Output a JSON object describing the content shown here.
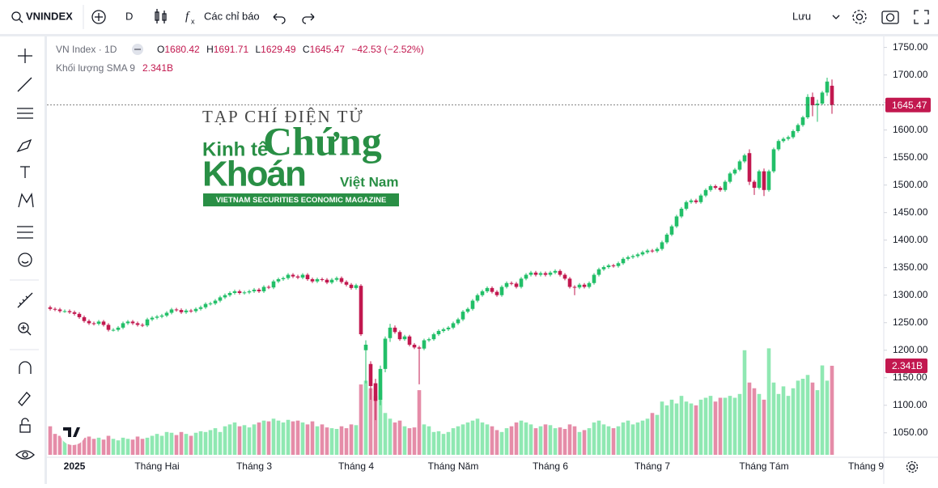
{
  "toolbar": {
    "symbol": "VNINDEX",
    "interval": "D",
    "indicators": "Các chỉ báo",
    "save": "Lưu"
  },
  "watermark": {
    "line1": "TẠP CHÍ ĐIỆN TỬ",
    "kinh_te": "Kinh tế",
    "chung": "Chứng",
    "khoan": "Khoán",
    "viet_nam": "Việt Nam",
    "band": "VIETNAM SECURITIES ECONOMIC MAGAZINE"
  },
  "chart_data": {
    "type": "candlestick",
    "legend": {
      "name": "VN Index · 1D",
      "o": "O",
      "h": "H",
      "l": "L",
      "c": "C",
      "change": "−42.53 (−2.52%)",
      "volume_name": "Khối lượng SMA 9"
    },
    "colors": {
      "up": "#22bf68",
      "down": "#c2184f",
      "volume_up": "#8fe8b2",
      "volume_down": "#e58ca8"
    },
    "categories": [
      null,
      null,
      null,
      null,
      null,
      "2025",
      null,
      null,
      null,
      null,
      null,
      null,
      null,
      null,
      null,
      null,
      null,
      null,
      null,
      null,
      null,
      null,
      "Tháng Hai",
      null,
      null,
      null,
      null,
      null,
      null,
      null,
      null,
      null,
      null,
      null,
      null,
      null,
      null,
      null,
      null,
      null,
      null,
      null,
      "Tháng 3",
      null,
      null,
      null,
      null,
      null,
      null,
      null,
      null,
      null,
      null,
      null,
      null,
      null,
      null,
      null,
      null,
      null,
      null,
      null,
      null,
      "Tháng 4",
      null,
      null,
      null,
      null,
      null,
      null,
      null,
      null,
      null,
      null,
      null,
      null,
      null,
      null,
      null,
      null,
      null,
      null,
      null,
      "Tháng Năm",
      null,
      null,
      null,
      null,
      null,
      null,
      null,
      null,
      null,
      null,
      null,
      null,
      null,
      null,
      null,
      null,
      null,
      null,
      null,
      "Tháng 6",
      null,
      null,
      null,
      null,
      null,
      null,
      null,
      null,
      null,
      null,
      null,
      null,
      null,
      null,
      null,
      null,
      null,
      null,
      null,
      null,
      "Tháng 7",
      null,
      null,
      null,
      null,
      null,
      null,
      null,
      null,
      null,
      null,
      null,
      null,
      null,
      null,
      null,
      null,
      null,
      null,
      null,
      null,
      null,
      null,
      "Tháng Tám",
      null,
      null,
      null,
      null,
      null,
      null,
      null,
      null,
      null,
      null,
      null,
      null,
      null,
      null,
      null,
      null,
      null,
      null,
      null,
      null,
      "Tháng 9"
    ],
    "open": [
      1278,
      1275,
      1274,
      1271,
      1271,
      1269,
      1266,
      1260,
      1253,
      1249,
      1248,
      1252,
      1246,
      1237,
      1237,
      1241,
      1249,
      1252,
      1249,
      1246,
      1245,
      1256,
      1259,
      1261,
      1263,
      1268,
      1274,
      1273,
      1269,
      1272,
      1271,
      1275,
      1278,
      1284,
      1285,
      1290,
      1296,
      1300,
      1304,
      1307,
      1304,
      1305,
      1307,
      1310,
      1307,
      1315,
      1314,
      1325,
      1329,
      1331,
      1337,
      1334,
      1332,
      1337,
      1329,
      1325,
      1329,
      1328,
      1323,
      1328,
      1331,
      1324,
      1319,
      1313,
      1317,
      1200,
      1175,
      1140,
      1110,
      1166,
      1222,
      1241,
      1233,
      1220,
      1225,
      1210,
      1205,
      1203,
      1218,
      1220,
      1229,
      1235,
      1238,
      1241,
      1249,
      1256,
      1270,
      1275,
      1290,
      1300,
      1307,
      1313,
      1306,
      1300,
      1315,
      1322,
      1321,
      1315,
      1330,
      1337,
      1341,
      1337,
      1340,
      1337,
      1341,
      1344,
      1337,
      1330,
      1315,
      1314,
      1319,
      1315,
      1322,
      1337,
      1347,
      1351,
      1354,
      1353,
      1358,
      1366,
      1369,
      1371,
      1374,
      1378,
      1381,
      1380,
      1384,
      1396,
      1410,
      1425,
      1443,
      1457,
      1469,
      1472,
      1469,
      1481,
      1491,
      1498,
      1495,
      1491,
      1506,
      1521,
      1528,
      1543,
      1558,
      1506,
      1495,
      1525,
      1491,
      1525,
      1565,
      1580,
      1584,
      1587,
      1598,
      1609,
      1623,
      1660,
      1645,
      1648,
      1668,
      1680.42,
      null,
      null,
      null,
      null,
      null,
      null,
      null
    ],
    "high": [
      1281,
      1278,
      1277,
      1274,
      1274,
      1272,
      1269,
      1263,
      1256,
      1252,
      1255,
      1255,
      1249,
      1240,
      1244,
      1252,
      1255,
      1255,
      1252,
      1249,
      1259,
      1262,
      1264,
      1266,
      1271,
      1277,
      1277,
      1276,
      1275,
      1275,
      1278,
      1281,
      1287,
      1288,
      1293,
      1299,
      1303,
      1307,
      1310,
      1310,
      1308,
      1310,
      1313,
      1313,
      1318,
      1318,
      1328,
      1332,
      1334,
      1340,
      1340,
      1337,
      1340,
      1340,
      1332,
      1332,
      1332,
      1331,
      1331,
      1334,
      1334,
      1327,
      1322,
      1321,
      1320,
      1218,
      1180,
      1148,
      1172,
      1225,
      1248,
      1245,
      1236,
      1228,
      1228,
      1213,
      1208,
      1221,
      1223,
      1232,
      1238,
      1241,
      1244,
      1252,
      1259,
      1273,
      1278,
      1293,
      1303,
      1310,
      1316,
      1316,
      1309,
      1318,
      1325,
      1325,
      1324,
      1333,
      1340,
      1344,
      1344,
      1343,
      1343,
      1344,
      1347,
      1347,
      1340,
      1333,
      1318,
      1322,
      1322,
      1325,
      1340,
      1350,
      1354,
      1357,
      1357,
      1361,
      1369,
      1372,
      1374,
      1377,
      1381,
      1384,
      1384,
      1387,
      1399,
      1413,
      1428,
      1446,
      1460,
      1472,
      1475,
      1475,
      1484,
      1494,
      1501,
      1501,
      1498,
      1509,
      1524,
      1531,
      1546,
      1557,
      1565,
      1509,
      1528,
      1530,
      1528,
      1568,
      1583,
      1587,
      1590,
      1601,
      1612,
      1626,
      1665,
      1668,
      1655,
      1671,
      1695,
      1691.71,
      null,
      null,
      null,
      null,
      null,
      null,
      null
    ],
    "low": [
      1272,
      1271,
      1268,
      1268,
      1266,
      1263,
      1257,
      1250,
      1246,
      1245,
      1245,
      1243,
      1234,
      1234,
      1234,
      1238,
      1246,
      1246,
      1243,
      1242,
      1242,
      1253,
      1256,
      1258,
      1260,
      1265,
      1270,
      1266,
      1266,
      1268,
      1268,
      1272,
      1275,
      1281,
      1282,
      1287,
      1293,
      1297,
      1301,
      1301,
      1301,
      1302,
      1304,
      1304,
      1304,
      1311,
      1311,
      1322,
      1326,
      1328,
      1331,
      1329,
      1329,
      1326,
      1322,
      1322,
      1325,
      1320,
      1320,
      1325,
      1321,
      1316,
      1310,
      1310,
      1226,
      1140,
      1110,
      1073,
      1100,
      1160,
      1215,
      1230,
      1217,
      1217,
      1207,
      1202,
      1138,
      1200,
      1215,
      1217,
      1226,
      1232,
      1235,
      1238,
      1246,
      1253,
      1267,
      1272,
      1287,
      1297,
      1304,
      1303,
      1297,
      1297,
      1312,
      1318,
      1312,
      1312,
      1327,
      1334,
      1334,
      1334,
      1334,
      1334,
      1338,
      1334,
      1327,
      1312,
      1300,
      1311,
      1312,
      1312,
      1319,
      1334,
      1344,
      1348,
      1350,
      1350,
      1355,
      1363,
      1366,
      1368,
      1371,
      1375,
      1377,
      1377,
      1381,
      1393,
      1407,
      1422,
      1440,
      1454,
      1466,
      1466,
      1466,
      1478,
      1488,
      1492,
      1488,
      1488,
      1503,
      1518,
      1525,
      1540,
      1500,
      1482,
      1492,
      1480,
      1488,
      1522,
      1562,
      1577,
      1581,
      1584,
      1595,
      1606,
      1620,
      1625,
      1615,
      1645,
      1662,
      1629.49,
      null,
      null,
      null,
      null,
      null,
      null,
      null
    ],
    "close": [
      1275,
      1274,
      1271,
      1271,
      1269,
      1266,
      1260,
      1253,
      1249,
      1248,
      1252,
      1246,
      1237,
      1237,
      1241,
      1249,
      1252,
      1249,
      1246,
      1245,
      1256,
      1259,
      1261,
      1263,
      1268,
      1274,
      1273,
      1269,
      1272,
      1271,
      1275,
      1278,
      1284,
      1285,
      1290,
      1296,
      1300,
      1304,
      1307,
      1304,
      1305,
      1307,
      1310,
      1307,
      1315,
      1314,
      1325,
      1329,
      1331,
      1337,
      1334,
      1332,
      1337,
      1329,
      1325,
      1329,
      1328,
      1323,
      1328,
      1331,
      1324,
      1319,
      1313,
      1318,
      1229,
      1210,
      1135,
      1108,
      1166,
      1221,
      1241,
      1233,
      1220,
      1225,
      1210,
      1205,
      1203,
      1218,
      1220,
      1229,
      1235,
      1238,
      1241,
      1249,
      1256,
      1270,
      1275,
      1290,
      1300,
      1307,
      1313,
      1306,
      1300,
      1315,
      1322,
      1321,
      1315,
      1330,
      1337,
      1341,
      1337,
      1340,
      1337,
      1341,
      1344,
      1337,
      1330,
      1315,
      1314,
      1319,
      1315,
      1322,
      1337,
      1347,
      1351,
      1354,
      1353,
      1358,
      1366,
      1369,
      1371,
      1374,
      1378,
      1381,
      1380,
      1384,
      1396,
      1410,
      1425,
      1443,
      1457,
      1469,
      1472,
      1469,
      1481,
      1491,
      1498,
      1495,
      1491,
      1506,
      1521,
      1528,
      1543,
      1554,
      1506,
      1495,
      1525,
      1491,
      1525,
      1565,
      1580,
      1584,
      1587,
      1598,
      1609,
      1623,
      1660,
      1645,
      1648,
      1668,
      1688,
      1645.47,
      null,
      null,
      null,
      null,
      null,
      null,
      null
    ],
    "volume": {
      "last_label": "2.341B",
      "values": [
        0.75,
        0.55,
        0.5,
        0.45,
        0.6,
        0.4,
        0.5,
        0.45,
        0.48,
        0.42,
        0.45,
        0.4,
        0.5,
        0.42,
        0.38,
        0.45,
        0.42,
        0.4,
        0.48,
        0.42,
        0.45,
        0.5,
        0.55,
        0.5,
        0.6,
        0.58,
        0.52,
        0.6,
        0.55,
        0.5,
        0.58,
        0.62,
        0.6,
        0.65,
        0.7,
        0.6,
        0.75,
        0.8,
        0.85,
        0.75,
        0.78,
        0.72,
        0.8,
        0.85,
        0.9,
        0.88,
        0.95,
        0.9,
        0.85,
        0.92,
        0.88,
        0.9,
        0.85,
        0.8,
        0.88,
        0.75,
        0.8,
        0.72,
        0.7,
        0.68,
        0.75,
        0.7,
        0.8,
        0.78,
        1.85,
        1.95,
        1.75,
        1.55,
        1.7,
        1.1,
        0.95,
        0.85,
        0.9,
        0.75,
        0.7,
        0.72,
        1.7,
        0.8,
        0.75,
        0.6,
        0.62,
        0.55,
        0.6,
        0.7,
        0.75,
        0.8,
        0.85,
        0.9,
        0.95,
        0.85,
        0.8,
        0.75,
        0.65,
        0.6,
        0.7,
        0.75,
        0.85,
        0.9,
        0.85,
        0.8,
        0.7,
        0.75,
        0.8,
        0.78,
        0.7,
        0.72,
        0.68,
        0.8,
        0.75,
        0.6,
        0.65,
        0.7,
        0.85,
        0.9,
        0.8,
        0.75,
        0.7,
        0.75,
        0.85,
        0.9,
        0.8,
        0.85,
        0.9,
        0.95,
        1.1,
        1.05,
        1.4,
        1.3,
        1.45,
        1.35,
        1.55,
        1.4,
        1.35,
        1.3,
        1.45,
        1.5,
        1.55,
        1.4,
        1.5,
        1.5,
        1.55,
        1.5,
        1.6,
        2.75,
        1.9,
        1.75,
        1.6,
        1.45,
        2.8,
        1.9,
        1.6,
        1.8,
        1.55,
        1.75,
        1.95,
        2.0,
        2.1,
        1.9,
        1.7,
        2.35,
        1.95,
        2.341,
        null,
        null,
        null,
        null,
        null,
        null,
        null
      ]
    },
    "ylim": [
      1010,
      1770
    ],
    "yticks": [
      {
        "value": 1050,
        "label": "1050.00"
      },
      {
        "value": 1100,
        "label": "1100.00"
      },
      {
        "value": 1150,
        "label": "1150.00"
      },
      {
        "value": 1200,
        "label": "1200.00"
      },
      {
        "value": 1250,
        "label": "1250.00"
      },
      {
        "value": 1300,
        "label": "1300.00"
      },
      {
        "value": 1350,
        "label": "1350.00"
      },
      {
        "value": 1400,
        "label": "1400.00"
      },
      {
        "value": 1450,
        "label": "1450.00"
      },
      {
        "value": 1500,
        "label": "1500.00"
      },
      {
        "value": 1550,
        "label": "1550.00"
      },
      {
        "value": 1600,
        "label": "1600.00"
      },
      {
        "value": 1650,
        "label": "1650.00"
      },
      {
        "value": 1700,
        "label": "1700.00"
      },
      {
        "value": 1750,
        "label": "1750.00"
      }
    ],
    "y2lim": [
      0,
      11
    ],
    "grid": false
  }
}
